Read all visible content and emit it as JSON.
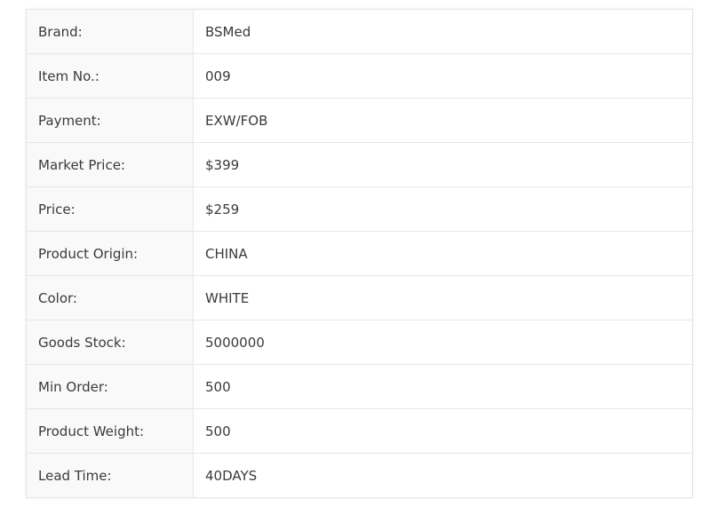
{
  "specs": [
    {
      "label": "Brand:",
      "value": "BSMed"
    },
    {
      "label": "Item No.:",
      "value": "009"
    },
    {
      "label": "Payment:",
      "value": "EXW/FOB"
    },
    {
      "label": "Market Price:",
      "value": "$399"
    },
    {
      "label": "Price:",
      "value": "$259"
    },
    {
      "label": "Product Origin:",
      "value": "CHINA"
    },
    {
      "label": "Color:",
      "value": "WHITE"
    },
    {
      "label": "Goods Stock:",
      "value": "5000000"
    },
    {
      "label": "Min Order:",
      "value": "500"
    },
    {
      "label": "Product Weight:",
      "value": "500"
    },
    {
      "label": "Lead Time:",
      "value": "40DAYS"
    }
  ]
}
